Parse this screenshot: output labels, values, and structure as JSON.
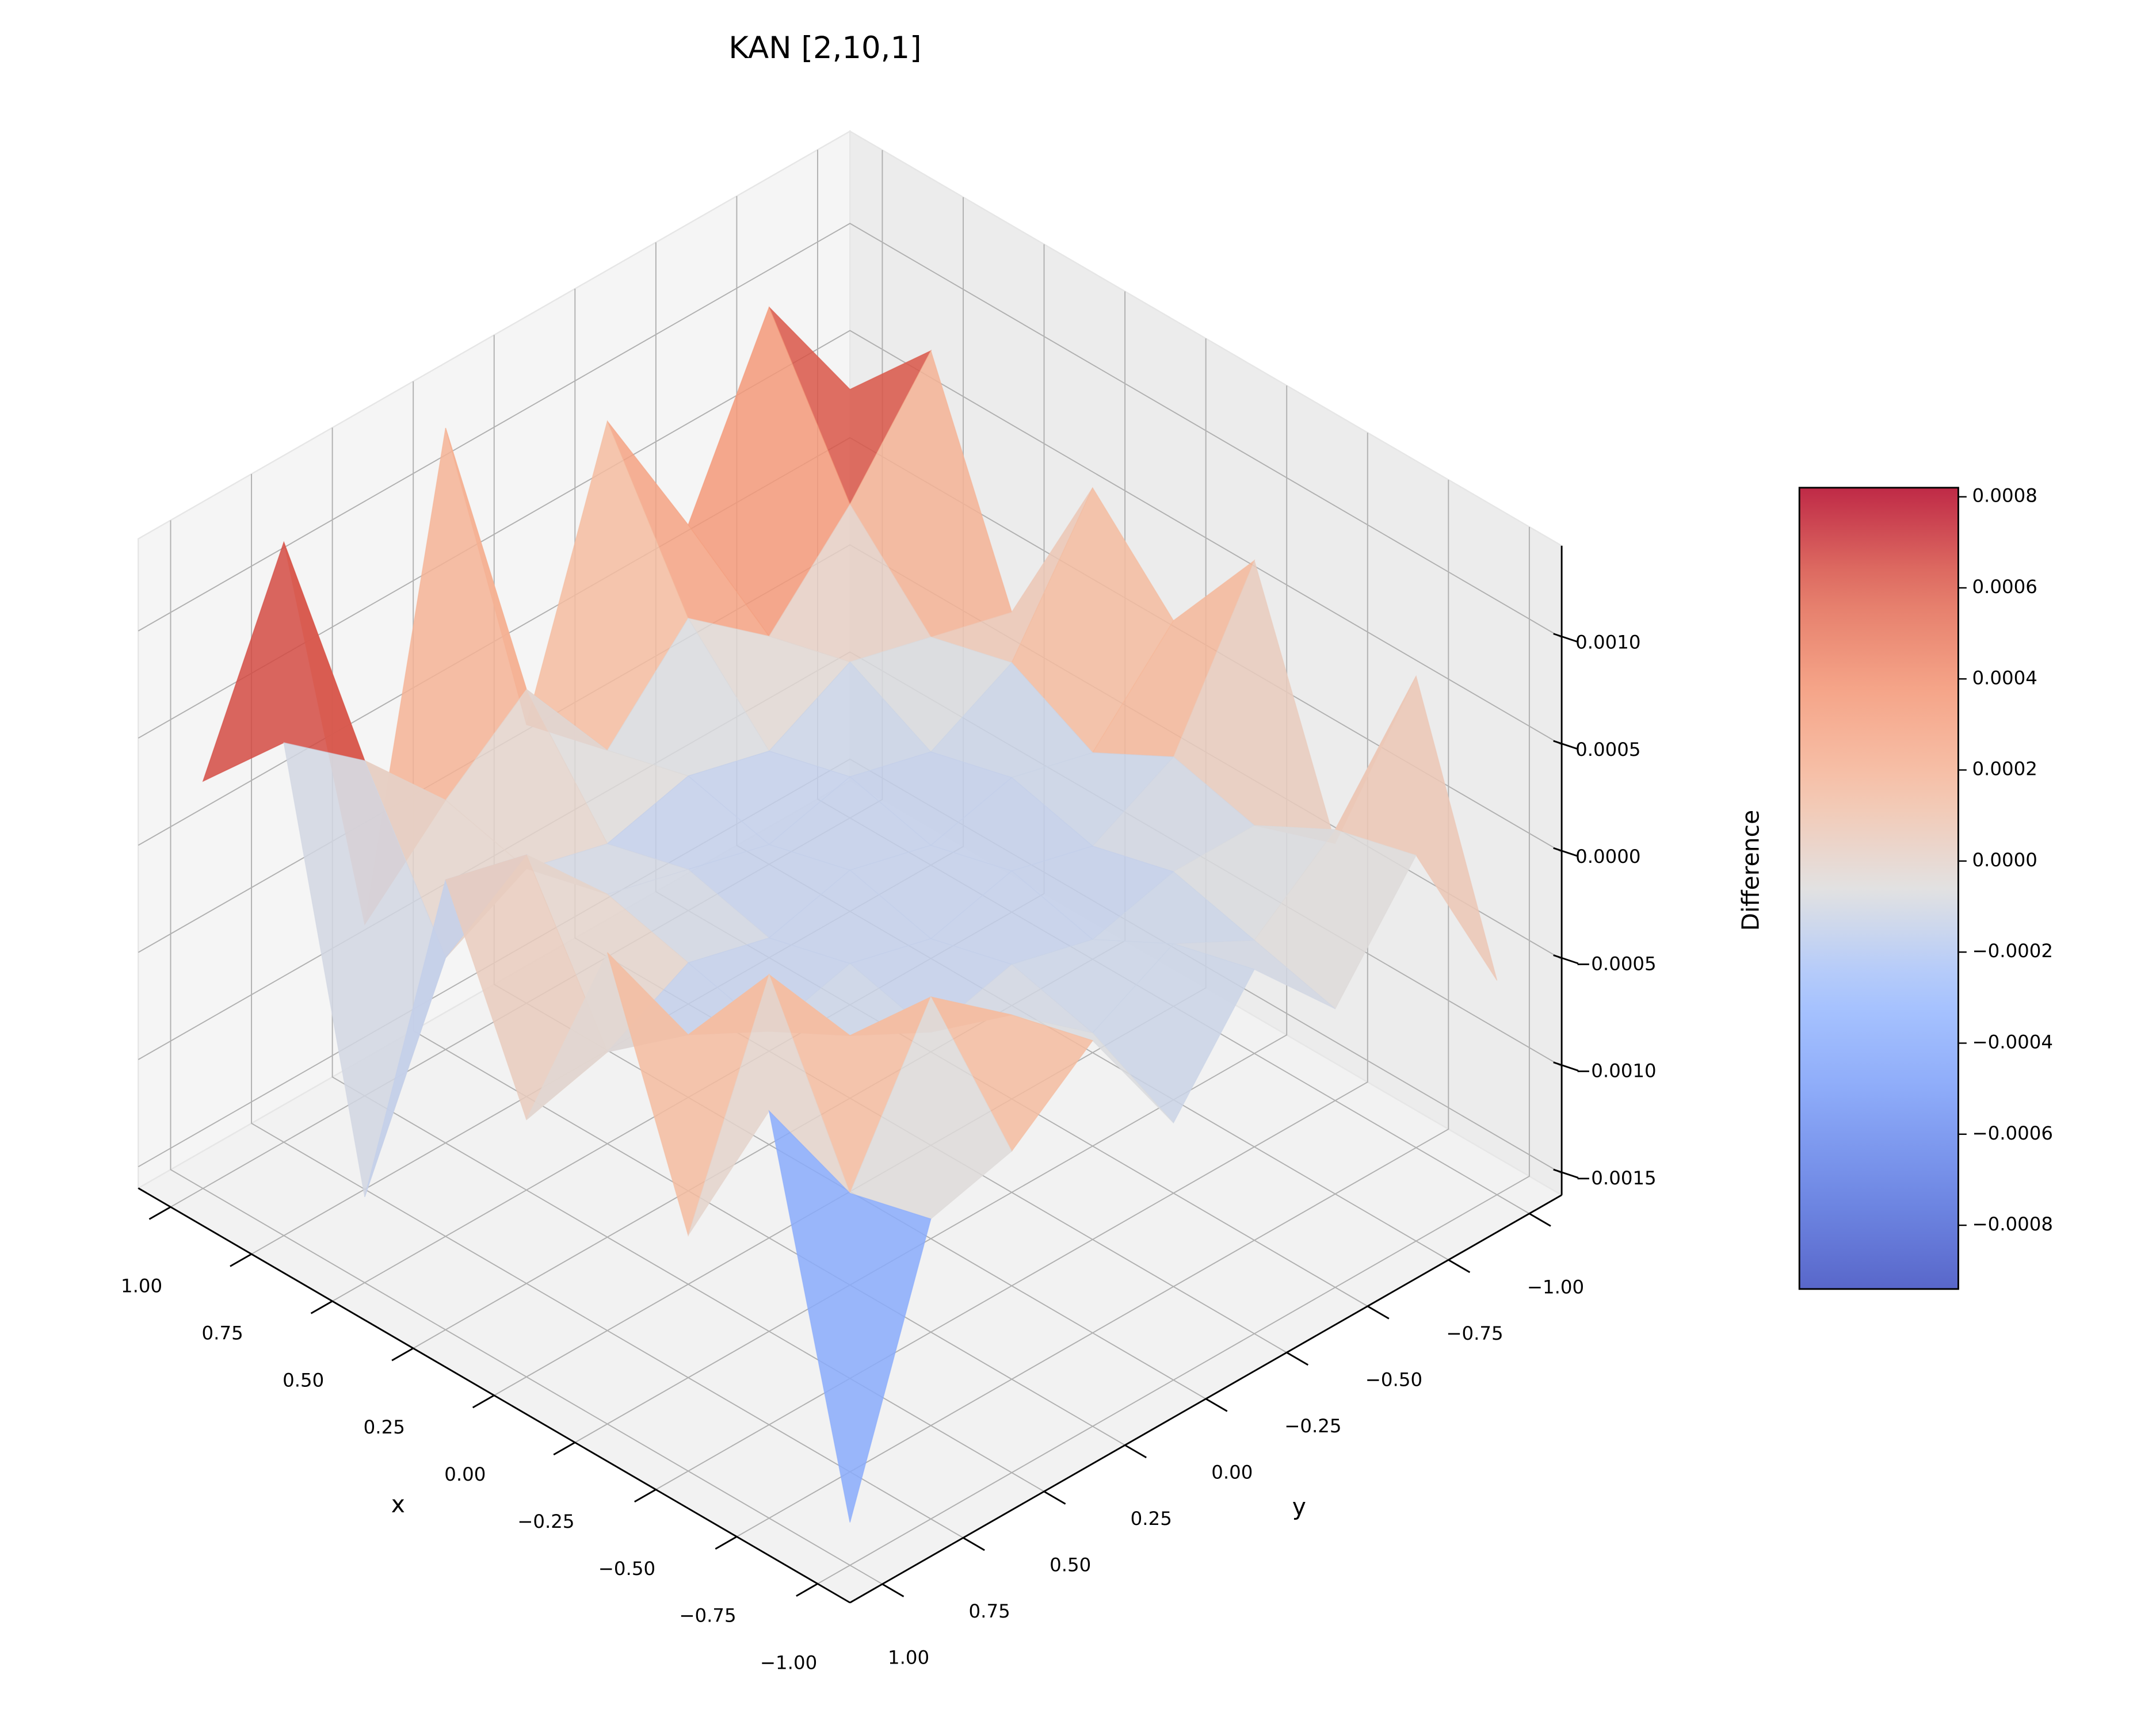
{
  "chart_data": {
    "type": "surface",
    "title": "KAN [2,10,1]",
    "xlabel": "x",
    "ylabel": "y",
    "zlabel": "Difference",
    "colormap": "coolwarm",
    "x": [
      -1,
      -0.75,
      -0.5,
      -0.25,
      0,
      0.25,
      0.5,
      0.75,
      1
    ],
    "y": [
      -1,
      -0.75,
      -0.5,
      -0.25,
      0,
      0.25,
      0.5,
      0.75,
      1
    ],
    "z": [
      [
        -0.0006,
        0.0002,
        -0.0003,
        0.0001,
        -0.0004,
        0.0002,
        -0.0001,
        -0.0002,
        -0.0014
      ],
      [
        0.0006,
        0.0001,
        -0.0002,
        0.0,
        -0.0002,
        0.0001,
        0.0004,
        -0.0003,
        0.0003
      ],
      [
        -0.0004,
        -0.0001,
        -0.0001,
        -0.0002,
        -0.0001,
        -0.0002,
        0.0,
        0.0005,
        -0.0005
      ],
      [
        0.0007,
        0.0,
        -0.0002,
        -0.0001,
        -0.0002,
        -0.0001,
        -0.0002,
        0.0,
        0.0006
      ],
      [
        0.0002,
        -0.0002,
        -0.0001,
        -0.0002,
        -0.0001,
        -0.0002,
        -0.0001,
        -0.0003,
        -0.0004
      ],
      [
        0.0006,
        0.0,
        -0.0002,
        -0.0001,
        -0.0002,
        -0.0001,
        0.0,
        0.0004,
        0.0005
      ],
      [
        -0.0002,
        -0.0001,
        0.0,
        -0.0002,
        -0.0001,
        -0.0002,
        -0.0001,
        -0.0003,
        -0.0012
      ],
      [
        0.0008,
        0.0003,
        -0.0001,
        0.0002,
        -0.0002,
        0.0003,
        0.0,
        0.0004,
        0.0007
      ],
      [
        0.0004,
        0.001,
        0.0002,
        0.0009,
        -0.0003,
        0.0013,
        -0.0008,
        0.0012,
        0.0003
      ]
    ],
    "xlim": [
      -1.1,
      1.1
    ],
    "ylim": [
      -1.1,
      1.1
    ],
    "zlim": [
      -0.0016,
      0.00143
    ],
    "xticks": [
      {
        "value": 1,
        "label": "1.00"
      },
      {
        "value": 0.75,
        "label": "0.75"
      },
      {
        "value": 0.5,
        "label": "0.50"
      },
      {
        "value": 0.25,
        "label": "0.25"
      },
      {
        "value": 0,
        "label": "0.00"
      },
      {
        "value": -0.25,
        "label": "−0.25"
      },
      {
        "value": -0.5,
        "label": "−0.50"
      },
      {
        "value": -0.75,
        "label": "−0.75"
      },
      {
        "value": -1,
        "label": "−1.00"
      }
    ],
    "yticks": [
      {
        "value": -1,
        "label": "−1.00"
      },
      {
        "value": -0.75,
        "label": "−0.75"
      },
      {
        "value": -0.5,
        "label": "−0.50"
      },
      {
        "value": -0.25,
        "label": "−0.25"
      },
      {
        "value": 0,
        "label": "0.00"
      },
      {
        "value": 0.25,
        "label": "0.25"
      },
      {
        "value": 0.5,
        "label": "0.50"
      },
      {
        "value": 0.75,
        "label": "0.75"
      },
      {
        "value": 1,
        "label": "1.00"
      }
    ],
    "zticks": [
      {
        "value": 0.001,
        "label": "0.0010"
      },
      {
        "value": 0.0005,
        "label": "0.0005"
      },
      {
        "value": 0,
        "label": "0.0000"
      },
      {
        "value": -0.0005,
        "label": "−0.0005"
      },
      {
        "value": -0.001,
        "label": "−0.0010"
      },
      {
        "value": -0.0015,
        "label": "−0.0015"
      }
    ],
    "clim": [
      -0.00094,
      0.00082
    ],
    "cbar_ticks": [
      {
        "value": 0.0008,
        "label": "0.0008"
      },
      {
        "value": 0.0006,
        "label": "0.0006"
      },
      {
        "value": 0.0004,
        "label": "0.0004"
      },
      {
        "value": 0.0002,
        "label": "0.0002"
      },
      {
        "value": 0,
        "label": "0.0000"
      },
      {
        "value": -0.0002,
        "label": "−0.0002"
      },
      {
        "value": -0.0004,
        "label": "−0.0004"
      },
      {
        "value": -0.0006,
        "label": "−0.0006"
      },
      {
        "value": -0.0008,
        "label": "−0.0008"
      }
    ],
    "grid": true
  }
}
